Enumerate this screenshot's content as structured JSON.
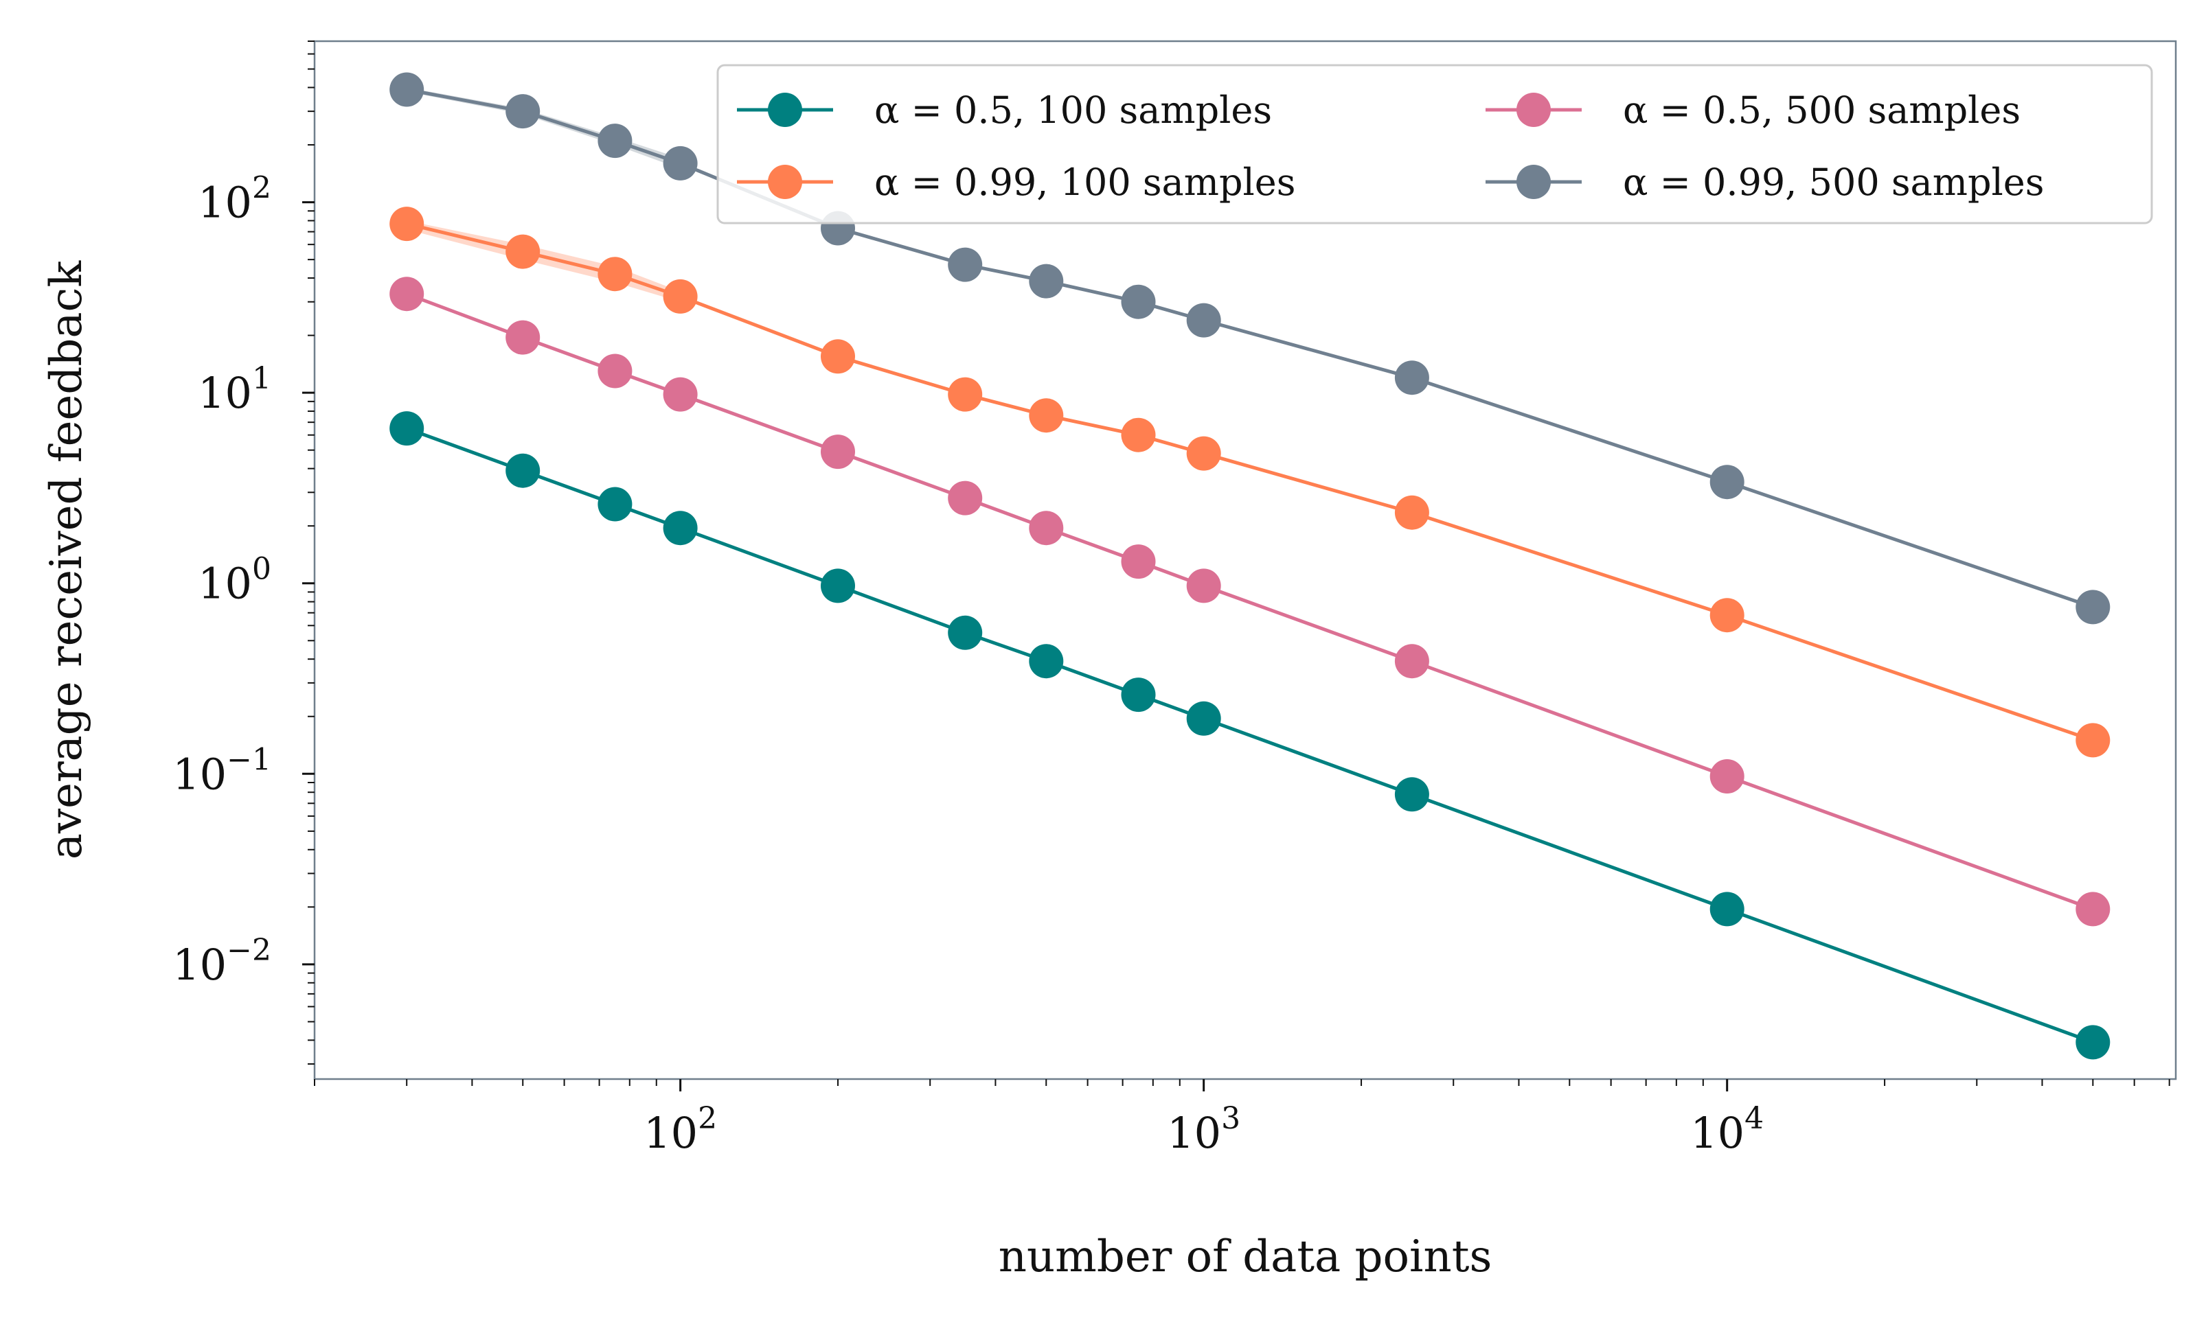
{
  "chart_data": {
    "type": "line",
    "xscale": "log",
    "yscale": "log",
    "xlabel": "number of data points",
    "ylabel": "average received feedback",
    "xlim": [
      20,
      72000
    ],
    "ylim": [
      0.0025,
      700
    ],
    "x": [
      30,
      50,
      75,
      100,
      200,
      350,
      500,
      750,
      1000,
      2500,
      10000,
      50000
    ],
    "x_ticks": [
      {
        "value": 100,
        "label": "10",
        "exp": "2"
      },
      {
        "value": 1000,
        "label": "10",
        "exp": "3"
      },
      {
        "value": 10000,
        "label": "10",
        "exp": "4"
      }
    ],
    "y_ticks": [
      {
        "value": 0.01,
        "label": "10",
        "exp": "−2"
      },
      {
        "value": 0.1,
        "label": "10",
        "exp": "−1"
      },
      {
        "value": 1,
        "label": "10",
        "exp": "0"
      },
      {
        "value": 10,
        "label": "10",
        "exp": "1"
      },
      {
        "value": 100,
        "label": "10",
        "exp": "2"
      }
    ],
    "series": [
      {
        "name": "α = 0.5, 100 samples",
        "color": "#008080",
        "values": [
          6.5,
          3.9,
          2.6,
          1.95,
          0.97,
          0.55,
          0.39,
          0.26,
          0.195,
          0.078,
          0.0195,
          0.0039
        ]
      },
      {
        "name": "α = 0.99, 100 samples",
        "color": "#ff7f50",
        "values": [
          77,
          55,
          42,
          32,
          15.5,
          9.8,
          7.6,
          6.0,
          4.8,
          2.35,
          0.68,
          0.15
        ],
        "band": {
          "lower": [
            72,
            50,
            38,
            30
          ],
          "upper": [
            80,
            60,
            46,
            34
          ]
        }
      },
      {
        "name": "α = 0.5, 500 samples",
        "color": "#db7093",
        "values": [
          33,
          19.5,
          13,
          9.8,
          4.9,
          2.8,
          1.95,
          1.3,
          0.97,
          0.39,
          0.097,
          0.0195
        ]
      },
      {
        "name": "α = 0.99, 500 samples",
        "color": "#708090",
        "values": [
          390,
          300,
          210,
          160,
          73,
          47,
          38.5,
          30,
          24,
          12,
          3.4,
          0.75
        ],
        "band": {
          "lower": [
            380,
            290,
            200,
            150
          ],
          "upper": [
            400,
            310,
            220,
            170
          ]
        }
      }
    ],
    "legend": {
      "position": "top-right",
      "columns": 2,
      "entries": [
        {
          "text": "α = 0.5, 100 samples",
          "color": "#008080"
        },
        {
          "text": "α = 0.5, 500 samples",
          "color": "#db7093"
        },
        {
          "text": "α = 0.99, 100 samples",
          "color": "#ff7f50"
        },
        {
          "text": "α = 0.99, 500 samples",
          "color": "#708090"
        }
      ]
    }
  }
}
